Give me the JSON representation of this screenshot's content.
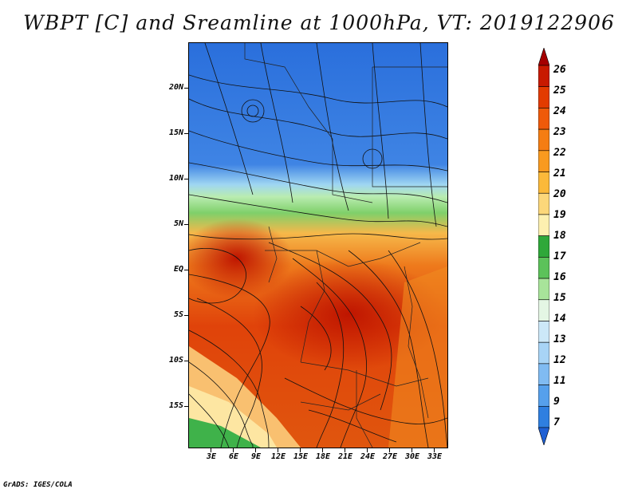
{
  "title": "WBPT [C] and Sreamline at 1000hPa, VT: 2019122906",
  "footer": "GrADS: IGES/COLA",
  "map": {
    "lat_labels": [
      "20N",
      "15N",
      "10N",
      "5N",
      "EQ",
      "5S",
      "10S",
      "15S"
    ],
    "lon_labels": [
      "3E",
      "6E",
      "9E",
      "12E",
      "15E",
      "18E",
      "21E",
      "24E",
      "27E",
      "30E",
      "33E"
    ]
  },
  "colorbar": {
    "labels": [
      "26",
      "25",
      "24",
      "23",
      "22",
      "21",
      "20",
      "19",
      "18",
      "17",
      "16",
      "15",
      "14",
      "13",
      "12",
      "11",
      "9",
      "7"
    ],
    "colors": [
      "#a50000",
      "#c81a00",
      "#e33b00",
      "#ef5a0a",
      "#f57d12",
      "#f99a1f",
      "#fbb93a",
      "#fcd77a",
      "#fdf0b0",
      "#2fa83a",
      "#5cc25a",
      "#a8e49a",
      "#e4f6e4",
      "#cce8f8",
      "#a8d4f6",
      "#80bbf2",
      "#56a0ec",
      "#2f7fe0",
      "#1f60d4"
    ]
  }
}
